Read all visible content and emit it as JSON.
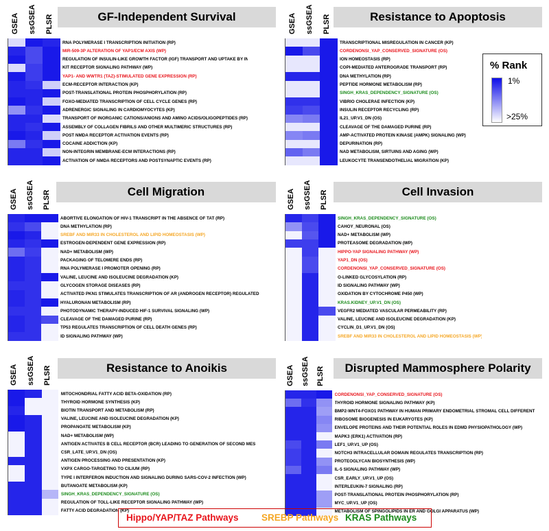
{
  "colors": {
    "hippo": "#e8141b",
    "srebp": "#f5a623",
    "kras": "#1a8a1a",
    "default": "#000000",
    "heat_high": "#0d0de8",
    "heat_low": "#ffffff"
  },
  "legend": {
    "title": "% Rank",
    "max_label": "1%",
    "min_label": ">25%"
  },
  "bottom_legend": {
    "hippo": "Hippo/YAP/TAZ Pathways",
    "srebp": "SREBP Pathways",
    "kras": "KRAS Pathways"
  },
  "chart_data": [
    {
      "type": "heatmap",
      "title": "GF-Independent Survival",
      "columns": [
        "GSEA",
        "ssGSEA",
        "PLSR"
      ],
      "value_scale": "color intensity 0 (>25% rank, white) to 1 (1% rank, blue)",
      "rows": [
        {
          "label": "RNA POLYMERASE I TRANSCRIPTION INITIATION (RP)",
          "group": "default",
          "values": [
            0.15,
            0.95,
            0.9
          ]
        },
        {
          "label": "MIR-509-3P ALTERATION OF YAP1/ECM AXIS (WP)",
          "group": "hippo",
          "values": [
            0.9,
            0.75,
            0.95
          ]
        },
        {
          "label": "REGULATION OF INSULIN-LIKE GROWTH FACTOR (IGF) TRANSPORT AND UPTAKE BY INSU",
          "group": "default",
          "values": [
            0.95,
            0.75,
            0.95
          ]
        },
        {
          "label": "KIT RECEPTOR SIGNALING PATHWAY (WP)",
          "group": "default",
          "values": [
            0.15,
            0.8,
            0.95
          ]
        },
        {
          "label": "YAP1- AND WWTR1 (TAZ)-STIMULATED GENE EXPRESSION (RP)",
          "group": "hippo",
          "values": [
            0.95,
            0.8,
            0.95
          ]
        },
        {
          "label": "ECM-RECEPTOR INTERACTION (KP)",
          "group": "default",
          "values": [
            0.9,
            0.85,
            0.2
          ]
        },
        {
          "label": "POST-TRANSLATIONAL PROTEIN PHOSPHORYLATION (RP)",
          "group": "default",
          "values": [
            0.9,
            0.9,
            0.95
          ]
        },
        {
          "label": "FOXO-MEDIATED TRANSCRIPTION OF CELL CYCLE GENES (RP)",
          "group": "default",
          "values": [
            0.95,
            0.9,
            0.2
          ]
        },
        {
          "label": "ADRENERGIC SIGNALING IN CARDIOMYOCYTES (KP)",
          "group": "default",
          "values": [
            0.45,
            0.85,
            0.95
          ]
        },
        {
          "label": "TRANSPORT OF INORGANIC CATIONS/ANIONS AND AMINO ACIDS/OLIGOPEPTIDES (RP)",
          "group": "default",
          "values": [
            0.9,
            0.9,
            0.15
          ]
        },
        {
          "label": "ASSEMBLY OF COLLAGEN FIBRILS AND OTHER MULTIMERIC STRUCTURES (RP)",
          "group": "default",
          "values": [
            0.9,
            0.85,
            0.95
          ]
        },
        {
          "label": "POST NMDA RECEPTOR ACTIVATION EVENTS (RP)",
          "group": "default",
          "values": [
            0.95,
            0.9,
            0.2
          ]
        },
        {
          "label": "COCAINE ADDICTION (KP)",
          "group": "default",
          "values": [
            0.55,
            0.85,
            0.95
          ]
        },
        {
          "label": "NON-INTEGRIN MEMBRANE-ECM INTERACTIONS (RP)",
          "group": "default",
          "values": [
            0.9,
            0.9,
            0.2
          ]
        },
        {
          "label": "ACTIVATION OF NMDA RECEPTORS AND POSTSYNAPTIC EVENTS (RP)",
          "group": "default",
          "values": [
            0.9,
            0.9,
            0.95
          ]
        }
      ]
    },
    {
      "type": "heatmap",
      "title": "Resistance to Apoptosis",
      "columns": [
        "GSEA",
        "ssGSEA",
        "PLSR"
      ],
      "rows": [
        {
          "label": "TRANSCRIPTIONAL MISREGULATION IN CANCER (KP)",
          "group": "default",
          "values": [
            0.1,
            0.1,
            0.95
          ]
        },
        {
          "label": "CORDENONSI_YAP_CONSERVED_SIGNATURE (OS)",
          "group": "hippo",
          "values": [
            0.95,
            0.75,
            0.95
          ]
        },
        {
          "label": "ION HOMEOSTASIS (RP)",
          "group": "default",
          "values": [
            0.1,
            0.1,
            0.95
          ]
        },
        {
          "label": "COPI-MEDIATED ANTEROGRADE TRANSPORT (RP)",
          "group": "default",
          "values": [
            0.1,
            0.1,
            0.95
          ]
        },
        {
          "label": "DNA METHYLATION (RP)",
          "group": "default",
          "values": [
            0.9,
            0.9,
            0.95
          ]
        },
        {
          "label": "PEPTIDE HORMONE METABOLISM (RP)",
          "group": "default",
          "values": [
            0.1,
            0.1,
            0.95
          ]
        },
        {
          "label": "SINGH_KRAS_DEPENDENCY_SIGNATURE (OS)",
          "group": "kras",
          "values": [
            0.1,
            0.1,
            0.95
          ]
        },
        {
          "label": "VIBRIO CHOLERAE INFECTION (KP)",
          "group": "default",
          "values": [
            0.85,
            0.85,
            0.95
          ]
        },
        {
          "label": "INSULIN RECEPTOR RECYCLING (RP)",
          "group": "default",
          "values": [
            0.8,
            0.75,
            0.95
          ]
        },
        {
          "label": "IL21_UP.V1_DN (OS)",
          "group": "default",
          "values": [
            0.5,
            0.55,
            0.95
          ]
        },
        {
          "label": "CLEAVAGE OF THE DAMAGED PURINE (RP)",
          "group": "default",
          "values": [
            0.1,
            0.1,
            0.95
          ]
        },
        {
          "label": "AMP-ACTIVATED PROTEIN KINASE (AMPK) SIGNALING (WP)",
          "group": "default",
          "values": [
            0.5,
            0.55,
            0.95
          ]
        },
        {
          "label": "DEPURINATION (RP)",
          "group": "default",
          "values": [
            0.1,
            0.1,
            0.95
          ]
        },
        {
          "label": "NAD METABOLISM, SIRTUINS AND AGING (WP)",
          "group": "default",
          "values": [
            0.65,
            0.55,
            0.95
          ]
        },
        {
          "label": "LEUKOCYTE TRANSENDOTHELIAL MIGRATION (KP)",
          "group": "default",
          "values": [
            0.1,
            0.1,
            0.95
          ]
        }
      ]
    },
    {
      "type": "heatmap",
      "title": "Cell Migration",
      "columns": [
        "GSEA",
        "ssGSEA",
        "PLSR"
      ],
      "rows": [
        {
          "label": "ABORTIVE ELONGATION OF HIV-1 TRANSCRIPT IN THE ABSENCE OF TAT (RP)",
          "group": "default",
          "values": [
            0.9,
            0.95,
            0.95
          ]
        },
        {
          "label": "DNA METHYLATION (RP)",
          "group": "default",
          "values": [
            0.85,
            0.75,
            0.05
          ]
        },
        {
          "label": "SREBF AND MIR33 IN CHOLESTEROL AND LIPID HOMEOSTASIS (WP)",
          "group": "srebp",
          "values": [
            0.95,
            0.9,
            0.05
          ]
        },
        {
          "label": "ESTROGEN-DEPENDENT GENE EXPRESSION (RP)",
          "group": "default",
          "values": [
            0.9,
            0.85,
            0.95
          ]
        },
        {
          "label": "NAD+ METABOLISM (WP)",
          "group": "default",
          "values": [
            0.6,
            0.8,
            0.05
          ]
        },
        {
          "label": "PACKAGING OF TELOMERE ENDS (RP)",
          "group": "default",
          "values": [
            0.9,
            0.85,
            0.05
          ]
        },
        {
          "label": "RNA POLYMERASE I PROMOTER OPENING (RP)",
          "group": "default",
          "values": [
            0.9,
            0.85,
            0.05
          ]
        },
        {
          "label": "VALINE, LEUCINE AND ISOLEUCINE DEGRADATION (KP)",
          "group": "default",
          "values": [
            0.9,
            0.85,
            0.95
          ]
        },
        {
          "label": "GLYCOGEN STORAGE DISEASES (RP)",
          "group": "default",
          "values": [
            0.85,
            0.85,
            0.05
          ]
        },
        {
          "label": "ACTIVATED PKN1 STIMULATES TRANSCRIPTION OF AR (ANDROGEN RECEPTOR) REGULATED",
          "group": "default",
          "values": [
            0.9,
            0.85,
            0.05
          ]
        },
        {
          "label": "HYALURONAN METABOLISM (RP)",
          "group": "default",
          "values": [
            0.9,
            0.85,
            0.95
          ]
        },
        {
          "label": "PHOTODYNAMIC THERAPY-INDUCED HIF-1 SURVIVAL SIGNALING (WP)",
          "group": "default",
          "values": [
            0.85,
            0.85,
            0.05
          ]
        },
        {
          "label": "CLEAVAGE OF THE DAMAGED PURINE (RP)",
          "group": "default",
          "values": [
            0.9,
            0.85,
            0.75
          ]
        },
        {
          "label": "TP53 REGULATES TRANSCRIPTION OF CELL DEATH GENES (RP)",
          "group": "default",
          "values": [
            0.9,
            0.85,
            0.05
          ]
        },
        {
          "label": "ID SIGNALING PATHWAY (WP)",
          "group": "default",
          "values": [
            0.85,
            0.85,
            0.05
          ]
        }
      ]
    },
    {
      "type": "heatmap",
      "title": "Cell Invasion",
      "columns": [
        "GSEA",
        "ssGSEA",
        "PLSR"
      ],
      "rows": [
        {
          "label": "SINGH_KRAS_DEPENDENCY_SIGNATURE (OS)",
          "group": "kras",
          "values": [
            0.9,
            0.8,
            0.95
          ]
        },
        {
          "label": "CAHOY_NEURONAL (OS)",
          "group": "default",
          "values": [
            0.45,
            0.75,
            0.95
          ]
        },
        {
          "label": "NAD+ METABOLISM (WP)",
          "group": "default",
          "values": [
            0.05,
            0.7,
            0.95
          ]
        },
        {
          "label": "PROTEASOME DEGRADATION (WP)",
          "group": "default",
          "values": [
            0.8,
            0.8,
            0.95
          ]
        },
        {
          "label": "HIPPO-YAP SIGNALING PATHWAY (WP)",
          "group": "hippo",
          "values": [
            0.05,
            0.8,
            0.05
          ]
        },
        {
          "label": "YAP1_DN (OS)",
          "group": "hippo",
          "values": [
            0.05,
            0.75,
            0.05
          ]
        },
        {
          "label": "CORDENONSI_YAP_CONSERVED_SIGNATURE (OS)",
          "group": "hippo",
          "values": [
            0.05,
            0.75,
            0.05
          ]
        },
        {
          "label": "O-LINKED GLYCOSYLATION (RP)",
          "group": "default",
          "values": [
            0.05,
            0.9,
            0.05
          ]
        },
        {
          "label": "ID SIGNALING PATHWAY (WP)",
          "group": "default",
          "values": [
            0.05,
            0.9,
            0.05
          ]
        },
        {
          "label": "OXIDATION BY CYTOCHROME P450 (WP)",
          "group": "default",
          "values": [
            0.05,
            0.9,
            0.05
          ]
        },
        {
          "label": "KRAS.KIDNEY_UP.V1_DN (OS)",
          "group": "kras",
          "values": [
            0.05,
            0.9,
            0.05
          ]
        },
        {
          "label": "VEGFR2 MEDIATED VASCULAR PERMEABILITY (RP)",
          "group": "default",
          "values": [
            0.05,
            0.9,
            0.75
          ]
        },
        {
          "label": "VALINE, LEUCINE AND ISOLEUCINE DEGRADATION (KP)",
          "group": "default",
          "values": [
            0.05,
            0.9,
            0.05
          ]
        },
        {
          "label": "CYCLIN_D1_UP.V1_DN (OS)",
          "group": "default",
          "values": [
            0.05,
            0.9,
            0.05
          ]
        },
        {
          "label": "SREBF AND MIR33 IN CHOLESTEROL AND LIPID HOMEOSTASIS (WP)",
          "group": "srebp",
          "values": [
            0.05,
            0.9,
            0.05
          ]
        }
      ]
    },
    {
      "type": "heatmap",
      "title": "Resistance to Anoikis",
      "columns": [
        "GSEA",
        "ssGSEA",
        "PLSR"
      ],
      "rows": [
        {
          "label": "MITOCHONDRIAL FATTY ACID BETA-OXIDATION (RP)",
          "group": "default",
          "values": [
            0.95,
            0.9,
            0.05
          ]
        },
        {
          "label": "THYROID HORMONE SYNTHESIS (KP)",
          "group": "default",
          "values": [
            0.95,
            0.05,
            0.05
          ]
        },
        {
          "label": "BIOTIN TRANSPORT AND METABOLISM (RP)",
          "group": "default",
          "values": [
            0.9,
            0.05,
            0.05
          ]
        },
        {
          "label": "VALINE, LEUCINE AND ISOLEUCINE DEGRADATION (KP)",
          "group": "default",
          "values": [
            0.95,
            0.9,
            0.05
          ]
        },
        {
          "label": "PROPANOATE METABOLISM (KP)",
          "group": "default",
          "values": [
            0.95,
            0.9,
            0.05
          ]
        },
        {
          "label": "NAD+ METABOLISM (WP)",
          "group": "default",
          "values": [
            0.05,
            0.9,
            0.05
          ]
        },
        {
          "label": "ANTIGEN ACTIVATES B CELL RECEPTOR (BCR) LEADING TO GENERATION OF SECOND MES",
          "group": "default",
          "values": [
            0.05,
            0.9,
            0.05
          ]
        },
        {
          "label": "CSR_LATE_UP.V1_DN (OS)",
          "group": "default",
          "values": [
            0.05,
            0.9,
            0.05
          ]
        },
        {
          "label": "ANTIGEN PROCESSING AND PRESENTATION (KP)",
          "group": "default",
          "values": [
            0.9,
            0.9,
            0.05
          ]
        },
        {
          "label": "VXPX CARGO-TARGETING TO CILIUM (RP)",
          "group": "default",
          "values": [
            0.05,
            0.9,
            0.05
          ]
        },
        {
          "label": "TYPE I INTERFERON INDUCTION AND SIGNALING DURING SARS-COV-2 INFECTION (WP)",
          "group": "default",
          "values": [
            0.05,
            0.9,
            0.05
          ]
        },
        {
          "label": "BUTANOATE METABOLISM (KP)",
          "group": "default",
          "values": [
            0.9,
            0.9,
            0.05
          ]
        },
        {
          "label": "SINGH_KRAS_DEPENDENCY_SIGNATURE (OS)",
          "group": "kras",
          "values": [
            0.9,
            0.9,
            0.3
          ]
        },
        {
          "label": "REGULATION OF TOLL-LIKE RECEPTOR SIGNALING PATHWAY (WP)",
          "group": "default",
          "values": [
            0.9,
            0.9,
            0.05
          ]
        },
        {
          "label": "FATTY ACID DEGRADATION (KP)",
          "group": "default",
          "values": [
            0.9,
            0.9,
            0.05
          ]
        }
      ]
    },
    {
      "type": "heatmap",
      "title": "Disrupted Mammosphere Polarity",
      "columns": [
        "GSEA",
        "ssGSEA",
        "PLSR"
      ],
      "rows": [
        {
          "label": "CORDENONSI_YAP_CONSERVED_SIGNATURE (OS)",
          "group": "hippo",
          "values": [
            0.9,
            0.9,
            0.95
          ]
        },
        {
          "label": "THYROID HORMONE SIGNALING PATHWAY (KP)",
          "group": "default",
          "values": [
            0.6,
            0.85,
            0.45
          ]
        },
        {
          "label": "BMP2-WNT4-FOXO1 PATHWAY IN HUMAN PRIMARY ENDOMETRIAL STROMAL CELL DIFFERENT",
          "group": "default",
          "values": [
            0.9,
            0.9,
            0.4
          ]
        },
        {
          "label": "RIBOSOME BIOGENESIS IN EUKARYOTES (KP)",
          "group": "default",
          "values": [
            0.9,
            0.9,
            0.5
          ]
        },
        {
          "label": "ENVELOPE PROTEINS AND THEIR POTENTIAL ROLES IN EDMD PHYSIOPATHOLOGY (WP)",
          "group": "default",
          "values": [
            0.9,
            0.9,
            0.45
          ]
        },
        {
          "label": "MAPK3 (ERK1) ACTIVATION (RP)",
          "group": "default",
          "values": [
            0.9,
            0.9,
            0.05
          ]
        },
        {
          "label": "LEF1_UP.V1_UP (OS)",
          "group": "default",
          "values": [
            0.75,
            0.9,
            0.55
          ]
        },
        {
          "label": "NOTCH3 INTRACELLULAR DOMAIN REGULATES TRANSCRIPTION (RP)",
          "group": "default",
          "values": [
            0.8,
            0.9,
            0.05
          ]
        },
        {
          "label": "PROTEOGLYCAN BIOSYNTHESIS (WP)",
          "group": "default",
          "values": [
            0.8,
            0.9,
            0.45
          ]
        },
        {
          "label": "IL-5 SIGNALING PATHWAY (WP)",
          "group": "default",
          "values": [
            0.65,
            0.9,
            0.55
          ]
        },
        {
          "label": "CSR_EARLY_UP.V1_UP (OS)",
          "group": "default",
          "values": [
            0.9,
            0.9,
            0.05
          ]
        },
        {
          "label": "INTERLEUKIN-7 SIGNALING (RP)",
          "group": "default",
          "values": [
            0.9,
            0.9,
            0.05
          ]
        },
        {
          "label": "POST-TRANSLATIONAL PROTEIN PHOSPHORYLATION (RP)",
          "group": "default",
          "values": [
            0.9,
            0.9,
            0.4
          ]
        },
        {
          "label": "MYC_UP.V1_UP (OS)",
          "group": "default",
          "values": [
            0.9,
            0.9,
            0.4
          ]
        },
        {
          "label": "METABOLISM OF SPINGOLIPIDS IN ER AND GOLGI APPARATUS (WP)",
          "group": "default",
          "values": [
            0.9,
            0.9,
            0.05
          ]
        }
      ]
    }
  ]
}
